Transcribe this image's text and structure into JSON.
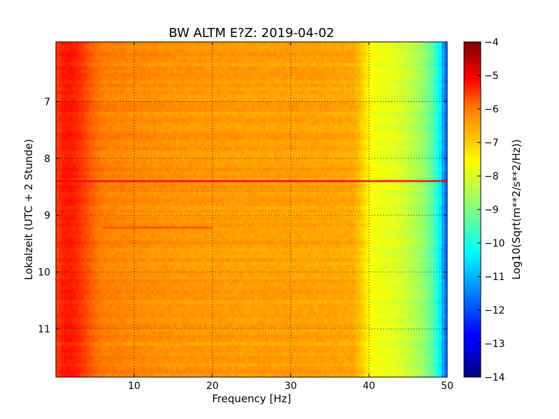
{
  "chart_data": {
    "type": "heatmap",
    "title": "BW ALTM E?Z: 2019-04-02",
    "xlabel": "Frequency [Hz]",
    "ylabel": "Lokalzeit (UTC + 2 Stunde)",
    "xlim": [
      0,
      50
    ],
    "ylim": [
      5.95,
      11.85
    ],
    "y_axis_inverted": true,
    "x_ticks": [
      10,
      20,
      30,
      40,
      50
    ],
    "y_ticks": [
      7,
      8,
      9,
      10,
      11
    ],
    "grid": true,
    "colormap": "jet",
    "colorbar": {
      "label": "Log10(Sqrt(m**2/s**2/Hz))",
      "range": [
        -14,
        -4
      ],
      "ticks": [
        -4,
        -5,
        -6,
        -7,
        -8,
        -9,
        -10,
        -11,
        -12,
        -13,
        -14
      ]
    },
    "spectral_profile": {
      "frequency_hz": [
        0,
        1,
        2,
        3,
        4,
        5,
        6,
        10,
        15,
        20,
        25,
        30,
        35,
        38,
        39,
        40,
        41,
        43,
        45,
        47,
        48,
        49,
        49.5,
        50
      ],
      "log10_amplitude": [
        -5.9,
        -5.5,
        -5.5,
        -5.7,
        -6.0,
        -6.3,
        -6.5,
        -6.6,
        -6.7,
        -6.75,
        -6.8,
        -6.8,
        -6.85,
        -6.9,
        -7.2,
        -7.7,
        -7.9,
        -8.0,
        -8.3,
        -8.8,
        -9.3,
        -10.2,
        -11.2,
        -11.8
      ]
    },
    "transients": [
      {
        "time_h": 8.4,
        "freq_from_hz": 0,
        "freq_to_hz": 50,
        "log10_amplitude": -5.3
      },
      {
        "time_h": 9.22,
        "freq_from_hz": 6,
        "freq_to_hz": 20,
        "log10_amplitude": -6.0
      }
    ]
  }
}
